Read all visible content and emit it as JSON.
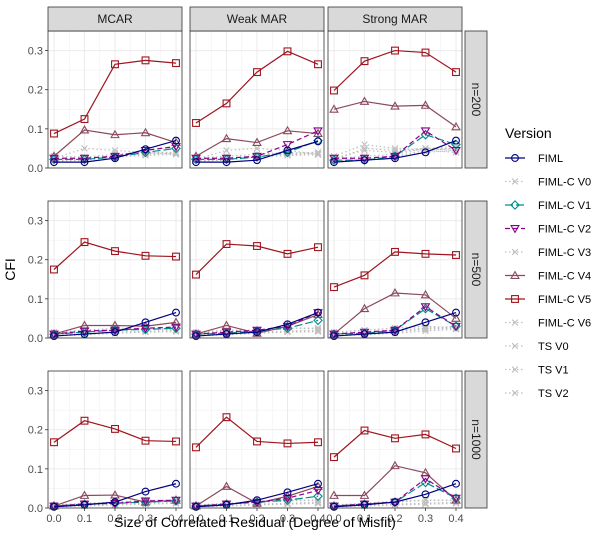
{
  "chart_data": {
    "type": "line",
    "xlabel": "Size of Correlated Residual (Degree of Misfit)",
    "ylabel": "CFI",
    "x": [
      0.0,
      0.1,
      0.2,
      0.3,
      0.4
    ],
    "x_tick_labels": [
      "0.0",
      "0.1",
      "0.2",
      "0.3",
      "0.4"
    ],
    "ylim": [
      0,
      0.35
    ],
    "y_ticks": [
      0.0,
      0.1,
      0.2,
      0.3
    ],
    "y_tick_labels": [
      "0.0",
      "0.1",
      "0.2",
      "0.3"
    ],
    "grid": true,
    "legend": {
      "title": "Version",
      "placement": "right",
      "entries": [
        {
          "name": "FIML",
          "color": "#000080",
          "marker": "circle",
          "line": "solid"
        },
        {
          "name": "FIML-C V0",
          "color": "#bfbfbf",
          "marker": "x",
          "line": "dotted"
        },
        {
          "name": "FIML-C V1",
          "color": "#008b8b",
          "marker": "diamond",
          "line": "longdash"
        },
        {
          "name": "FIML-C V2",
          "color": "#8b008b",
          "marker": "triangle-down",
          "line": "dashed"
        },
        {
          "name": "FIML-C V3",
          "color": "#bfbfbf",
          "marker": "x",
          "line": "dotted"
        },
        {
          "name": "FIML-C V4",
          "color": "#8b4a5c",
          "marker": "triangle",
          "line": "solid"
        },
        {
          "name": "FIML-C V5",
          "color": "#a0141e",
          "marker": "square",
          "line": "solid"
        },
        {
          "name": "FIML-C V6",
          "color": "#bfbfbf",
          "marker": "x",
          "line": "dotted"
        },
        {
          "name": "TS V0",
          "color": "#bfbfbf",
          "marker": "x",
          "line": "dotted"
        },
        {
          "name": "TS V1",
          "color": "#bfbfbf",
          "marker": "x",
          "line": "dotted"
        },
        {
          "name": "TS V2",
          "color": "#bfbfbf",
          "marker": "x",
          "line": "dotted"
        }
      ]
    },
    "columns": [
      "MCAR",
      "Weak MAR",
      "Strong MAR"
    ],
    "rows": [
      "n=200",
      "n=500",
      "n=1000"
    ],
    "panels": [
      [
        {
          "series": {
            "FIML": [
              0.015,
              0.015,
              0.025,
              0.048,
              0.07
            ],
            "FIML-C V0": [
              0.02,
              0.022,
              0.03,
              0.035,
              0.04
            ],
            "FIML-C V1": [
              0.022,
              0.022,
              0.028,
              0.04,
              0.05
            ],
            "FIML-C V2": [
              0.025,
              0.025,
              0.03,
              0.045,
              0.055
            ],
            "FIML-C V3": [
              0.03,
              0.028,
              0.035,
              0.04,
              0.04
            ],
            "FIML-C V4": [
              0.03,
              0.097,
              0.085,
              0.09,
              0.065
            ],
            "FIML-C V5": [
              0.088,
              0.125,
              0.265,
              0.275,
              0.268
            ],
            "FIML-C V6": [
              0.025,
              0.05,
              0.045,
              0.04,
              0.035
            ],
            "TS V0": [
              0.022,
              0.025,
              0.03,
              0.038,
              0.04
            ],
            "TS V1": [
              0.02,
              0.022,
              0.032,
              0.035,
              0.038
            ],
            "TS V2": [
              0.018,
              0.02,
              0.028,
              0.032,
              0.035
            ]
          }
        },
        {
          "series": {
            "FIML": [
              0.015,
              0.015,
              0.02,
              0.045,
              0.068
            ],
            "FIML-C V0": [
              0.02,
              0.02,
              0.03,
              0.035,
              0.04
            ],
            "FIML-C V1": [
              0.022,
              0.022,
              0.028,
              0.04,
              0.07
            ],
            "FIML-C V2": [
              0.025,
              0.025,
              0.03,
              0.06,
              0.095
            ],
            "FIML-C V3": [
              0.025,
              0.03,
              0.035,
              0.04,
              0.035
            ],
            "FIML-C V4": [
              0.03,
              0.075,
              0.065,
              0.095,
              0.088
            ],
            "FIML-C V5": [
              0.115,
              0.165,
              0.245,
              0.298,
              0.265
            ],
            "FIML-C V6": [
              0.022,
              0.045,
              0.05,
              0.045,
              0.035
            ],
            "TS V0": [
              0.022,
              0.025,
              0.03,
              0.038,
              0.04
            ],
            "TS V1": [
              0.02,
              0.022,
              0.03,
              0.035,
              0.036
            ],
            "TS V2": [
              0.018,
              0.02,
              0.028,
              0.032,
              0.034
            ]
          }
        },
        {
          "series": {
            "FIML": [
              0.015,
              0.02,
              0.025,
              0.04,
              0.07
            ],
            "FIML-C V0": [
              0.025,
              0.045,
              0.04,
              0.05,
              0.05
            ],
            "FIML-C V1": [
              0.02,
              0.02,
              0.03,
              0.085,
              0.06
            ],
            "FIML-C V2": [
              0.025,
              0.025,
              0.03,
              0.095,
              0.045
            ],
            "FIML-C V3": [
              0.03,
              0.06,
              0.05,
              0.045,
              0.04
            ],
            "FIML-C V4": [
              0.15,
              0.17,
              0.158,
              0.16,
              0.105
            ],
            "FIML-C V5": [
              0.198,
              0.273,
              0.3,
              0.295,
              0.245
            ],
            "FIML-C V6": [
              0.02,
              0.05,
              0.045,
              0.05,
              0.045
            ],
            "TS V0": [
              0.025,
              0.03,
              0.035,
              0.05,
              0.055
            ],
            "TS V1": [
              0.02,
              0.022,
              0.03,
              0.045,
              0.05
            ],
            "TS V2": [
              0.018,
              0.02,
              0.028,
              0.04,
              0.045
            ]
          }
        }
      ],
      [
        {
          "series": {
            "FIML": [
              0.005,
              0.01,
              0.015,
              0.04,
              0.065
            ],
            "FIML-C V0": [
              0.01,
              0.015,
              0.02,
              0.025,
              0.02
            ],
            "FIML-C V1": [
              0.01,
              0.015,
              0.02,
              0.022,
              0.025
            ],
            "FIML-C V2": [
              0.01,
              0.018,
              0.02,
              0.025,
              0.028
            ],
            "FIML-C V3": [
              0.015,
              0.02,
              0.02,
              0.025,
              0.02
            ],
            "FIML-C V4": [
              0.01,
              0.032,
              0.032,
              0.03,
              0.04
            ],
            "FIML-C V5": [
              0.175,
              0.245,
              0.222,
              0.21,
              0.208
            ],
            "FIML-C V6": [
              0.012,
              0.02,
              0.025,
              0.025,
              0.02
            ],
            "TS V0": [
              0.008,
              0.01,
              0.015,
              0.018,
              0.018
            ],
            "TS V1": [
              0.008,
              0.01,
              0.012,
              0.016,
              0.018
            ],
            "TS V2": [
              0.006,
              0.008,
              0.012,
              0.015,
              0.016
            ]
          }
        },
        {
          "series": {
            "FIML": [
              0.005,
              0.01,
              0.015,
              0.035,
              0.065
            ],
            "FIML-C V0": [
              0.01,
              0.015,
              0.02,
              0.025,
              0.025
            ],
            "FIML-C V1": [
              0.01,
              0.012,
              0.018,
              0.025,
              0.045
            ],
            "FIML-C V2": [
              0.01,
              0.015,
              0.02,
              0.03,
              0.065
            ],
            "FIML-C V3": [
              0.015,
              0.02,
              0.02,
              0.025,
              0.025
            ],
            "FIML-C V4": [
              0.01,
              0.032,
              0.012,
              0.03,
              0.06
            ],
            "FIML-C V5": [
              0.162,
              0.24,
              0.235,
              0.215,
              0.232
            ],
            "FIML-C V6": [
              0.012,
              0.018,
              0.02,
              0.025,
              0.025
            ],
            "TS V0": [
              0.008,
              0.01,
              0.015,
              0.018,
              0.02
            ],
            "TS V1": [
              0.008,
              0.01,
              0.012,
              0.016,
              0.018
            ],
            "TS V2": [
              0.006,
              0.008,
              0.012,
              0.015,
              0.016
            ]
          }
        },
        {
          "series": {
            "FIML": [
              0.005,
              0.01,
              0.015,
              0.04,
              0.065
            ],
            "FIML-C V0": [
              0.01,
              0.015,
              0.02,
              0.025,
              0.025
            ],
            "FIML-C V1": [
              0.01,
              0.012,
              0.02,
              0.075,
              0.03
            ],
            "FIML-C V2": [
              0.01,
              0.015,
              0.02,
              0.08,
              0.03
            ],
            "FIML-C V3": [
              0.015,
              0.02,
              0.025,
              0.03,
              0.025
            ],
            "FIML-C V4": [
              0.01,
              0.075,
              0.115,
              0.11,
              0.05
            ],
            "FIML-C V5": [
              0.13,
              0.16,
              0.22,
              0.215,
              0.212
            ],
            "FIML-C V6": [
              0.012,
              0.02,
              0.025,
              0.03,
              0.025
            ],
            "TS V0": [
              0.008,
              0.012,
              0.018,
              0.025,
              0.03
            ],
            "TS V1": [
              0.008,
              0.01,
              0.015,
              0.022,
              0.025
            ],
            "TS V2": [
              0.006,
              0.008,
              0.012,
              0.018,
              0.022
            ]
          }
        }
      ],
      [
        {
          "series": {
            "FIML": [
              0.003,
              0.008,
              0.015,
              0.042,
              0.062
            ],
            "FIML-C V0": [
              0.005,
              0.01,
              0.015,
              0.018,
              0.02
            ],
            "FIML-C V1": [
              0.005,
              0.01,
              0.012,
              0.015,
              0.018
            ],
            "FIML-C V2": [
              0.005,
              0.01,
              0.012,
              0.018,
              0.02
            ],
            "FIML-C V3": [
              0.008,
              0.012,
              0.015,
              0.02,
              0.02
            ],
            "FIML-C V4": [
              0.005,
              0.032,
              0.033,
              0.015,
              0.02
            ],
            "FIML-C V5": [
              0.168,
              0.223,
              0.202,
              0.172,
              0.17
            ],
            "FIML-C V6": [
              0.006,
              0.012,
              0.015,
              0.02,
              0.018
            ],
            "TS V0": [
              0.004,
              0.006,
              0.01,
              0.012,
              0.014
            ],
            "TS V1": [
              0.004,
              0.006,
              0.008,
              0.01,
              0.012
            ],
            "TS V2": [
              0.003,
              0.005,
              0.008,
              0.01,
              0.012
            ]
          }
        },
        {
          "series": {
            "FIML": [
              0.003,
              0.008,
              0.02,
              0.04,
              0.062
            ],
            "FIML-C V0": [
              0.005,
              0.01,
              0.015,
              0.018,
              0.02
            ],
            "FIML-C V1": [
              0.005,
              0.01,
              0.015,
              0.02,
              0.03
            ],
            "FIML-C V2": [
              0.005,
              0.01,
              0.015,
              0.025,
              0.045
            ],
            "FIML-C V3": [
              0.008,
              0.012,
              0.015,
              0.02,
              0.02
            ],
            "FIML-C V4": [
              0.005,
              0.055,
              0.012,
              0.03,
              0.055
            ],
            "FIML-C V5": [
              0.155,
              0.232,
              0.17,
              0.165,
              0.168
            ],
            "FIML-C V6": [
              0.006,
              0.012,
              0.015,
              0.02,
              0.02
            ],
            "TS V0": [
              0.004,
              0.006,
              0.01,
              0.012,
              0.015
            ],
            "TS V1": [
              0.004,
              0.006,
              0.008,
              0.01,
              0.012
            ],
            "TS V2": [
              0.003,
              0.005,
              0.008,
              0.01,
              0.012
            ]
          }
        },
        {
          "series": {
            "FIML": [
              0.003,
              0.008,
              0.015,
              0.035,
              0.062
            ],
            "FIML-C V0": [
              0.005,
              0.01,
              0.015,
              0.02,
              0.02
            ],
            "FIML-C V1": [
              0.005,
              0.01,
              0.015,
              0.065,
              0.025
            ],
            "FIML-C V2": [
              0.005,
              0.01,
              0.015,
              0.075,
              0.025
            ],
            "FIML-C V3": [
              0.008,
              0.012,
              0.018,
              0.02,
              0.02
            ],
            "FIML-C V4": [
              0.032,
              0.032,
              0.108,
              0.09,
              0.02
            ],
            "FIML-C V5": [
              0.13,
              0.198,
              0.178,
              0.188,
              0.152
            ],
            "FIML-C V6": [
              0.006,
              0.012,
              0.015,
              0.02,
              0.02
            ],
            "TS V0": [
              0.004,
              0.006,
              0.01,
              0.012,
              0.015
            ],
            "TS V1": [
              0.004,
              0.006,
              0.008,
              0.01,
              0.012
            ],
            "TS V2": [
              0.003,
              0.005,
              0.008,
              0.01,
              0.012
            ]
          }
        }
      ]
    ]
  }
}
